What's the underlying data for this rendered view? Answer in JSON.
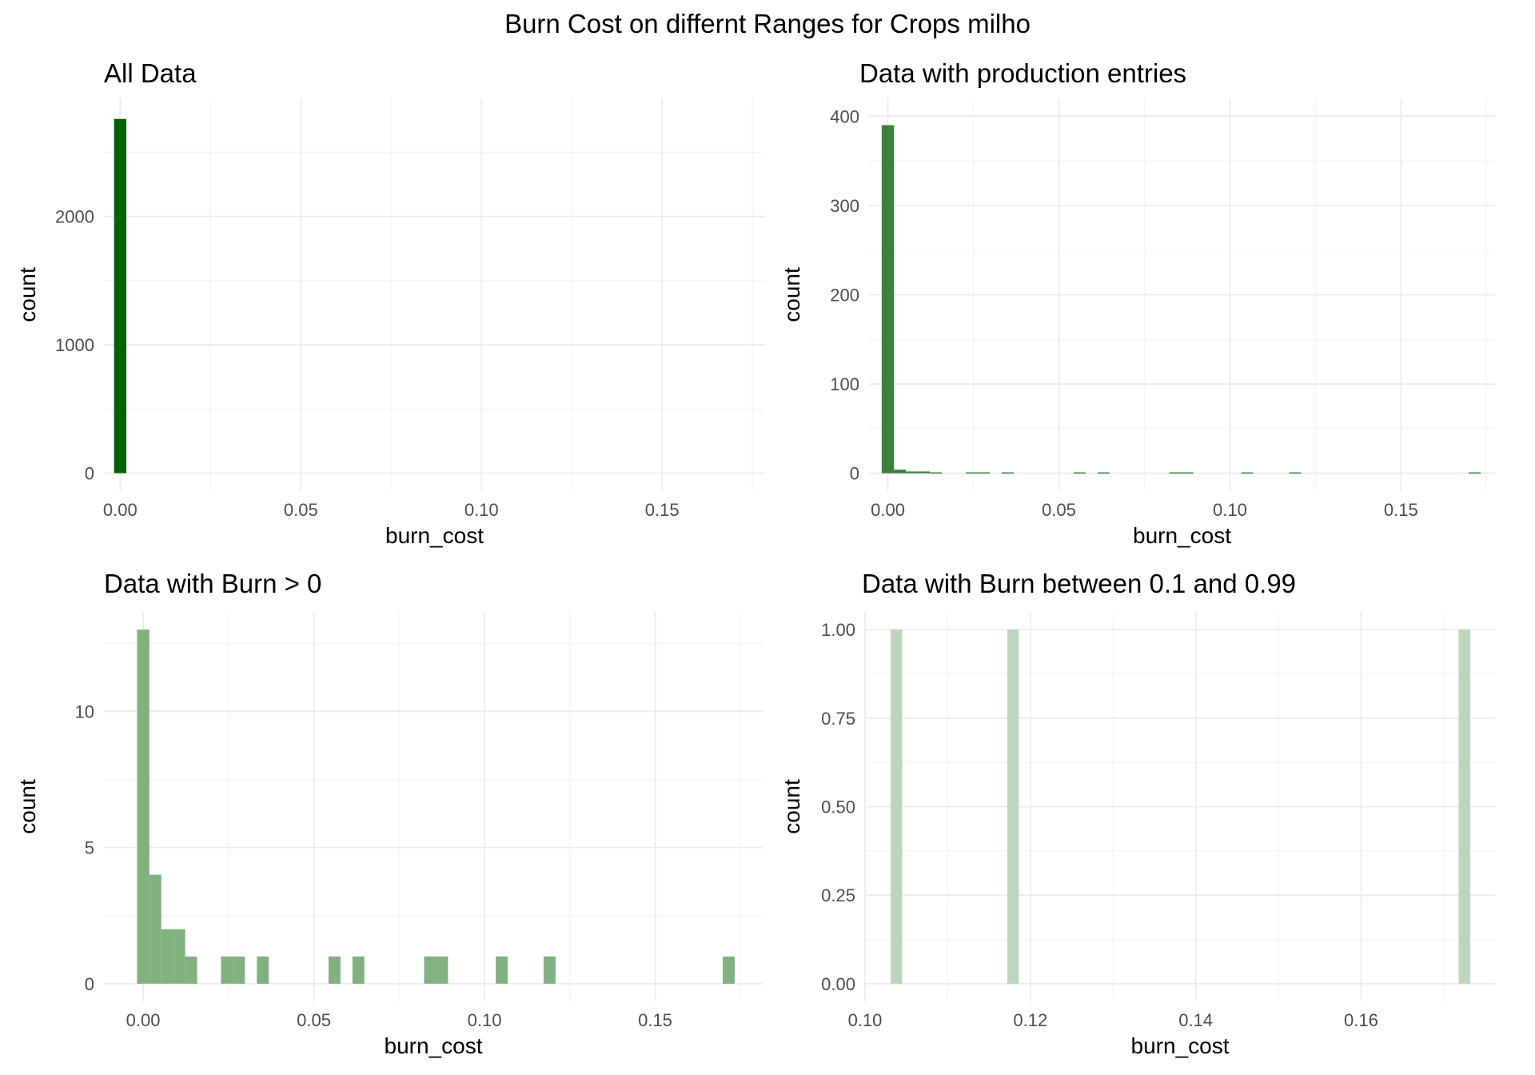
{
  "figure": {
    "title": "Burn Cost on differnt Ranges for Crops milho"
  },
  "colors": {
    "grid_major": "#ebebeb",
    "grid_minor": "#f4f4f4",
    "tick_text": "#4d4d4d",
    "panel1_fill": "#006400",
    "panel2_fill": "#3a823a",
    "panel3_fill": "#7fb27f",
    "panel4_fill": "#bcd6bc"
  },
  "chart_data": [
    {
      "type": "bar",
      "title": "All Data",
      "xlabel": "burn_cost",
      "ylabel": "count",
      "xlim": [
        -0.0045,
        0.1785
      ],
      "ylim": [
        -140,
        2920
      ],
      "x_ticks": [
        0.0,
        0.05,
        0.1,
        0.15
      ],
      "x_tick_labels": [
        "0.00",
        "0.05",
        "0.10",
        "0.15"
      ],
      "y_ticks": [
        0,
        1000,
        2000
      ],
      "y_tick_labels": [
        "0",
        "1000",
        "2000"
      ],
      "grid": true,
      "fill_color": "#006400",
      "bars": [
        {
          "x0": -0.0017,
          "x1": 0.0017,
          "count": 2760
        }
      ]
    },
    {
      "type": "bar",
      "title": "Data with production entries",
      "xlabel": "burn_cost",
      "ylabel": "count",
      "xlim": [
        -0.0055,
        0.1775
      ],
      "ylim": [
        -20,
        420
      ],
      "x_ticks": [
        0.0,
        0.05,
        0.1,
        0.15
      ],
      "x_tick_labels": [
        "0.00",
        "0.05",
        "0.10",
        "0.15"
      ],
      "y_ticks": [
        0,
        100,
        200,
        300,
        400
      ],
      "y_tick_labels": [
        "0",
        "100",
        "200",
        "300",
        "400"
      ],
      "grid": true,
      "fill_color": "#3a823a",
      "bars": [
        {
          "x0": -0.0018,
          "x1": 0.0018,
          "count": 390
        },
        {
          "x0": 0.0018,
          "x1": 0.0053,
          "count": 4
        },
        {
          "x0": 0.0053,
          "x1": 0.0088,
          "count": 2
        },
        {
          "x0": 0.0088,
          "x1": 0.0123,
          "count": 2
        },
        {
          "x0": 0.0123,
          "x1": 0.0158,
          "count": 1
        },
        {
          "x0": 0.0228,
          "x1": 0.0263,
          "count": 1
        },
        {
          "x0": 0.0263,
          "x1": 0.0298,
          "count": 1
        },
        {
          "x0": 0.0333,
          "x1": 0.0368,
          "count": 1
        },
        {
          "x0": 0.0543,
          "x1": 0.0578,
          "count": 1
        },
        {
          "x0": 0.0613,
          "x1": 0.0648,
          "count": 1
        },
        {
          "x0": 0.0823,
          "x1": 0.0858,
          "count": 1
        },
        {
          "x0": 0.0858,
          "x1": 0.0893,
          "count": 1
        },
        {
          "x0": 0.1033,
          "x1": 0.1068,
          "count": 1
        },
        {
          "x0": 0.1173,
          "x1": 0.1208,
          "count": 1
        },
        {
          "x0": 0.1698,
          "x1": 0.1733,
          "count": 1
        }
      ]
    },
    {
      "type": "bar",
      "title": "Data with Burn > 0",
      "xlabel": "burn_cost",
      "ylabel": "count",
      "xlim": [
        -0.0115,
        0.1815
      ],
      "ylim": [
        -0.65,
        13.65
      ],
      "x_ticks": [
        0.0,
        0.05,
        0.1,
        0.15
      ],
      "x_tick_labels": [
        "0.00",
        "0.05",
        "0.10",
        "0.15"
      ],
      "y_ticks": [
        0,
        5,
        10
      ],
      "y_tick_labels": [
        "0",
        "5",
        "10"
      ],
      "grid": true,
      "fill_color": "#7fb27f",
      "bars": [
        {
          "x0": -0.0018,
          "x1": 0.0018,
          "count": 13
        },
        {
          "x0": 0.0018,
          "x1": 0.0053,
          "count": 4
        },
        {
          "x0": 0.0053,
          "x1": 0.0088,
          "count": 2
        },
        {
          "x0": 0.0088,
          "x1": 0.0123,
          "count": 2
        },
        {
          "x0": 0.0123,
          "x1": 0.0158,
          "count": 1
        },
        {
          "x0": 0.0228,
          "x1": 0.0263,
          "count": 1
        },
        {
          "x0": 0.0263,
          "x1": 0.0298,
          "count": 1
        },
        {
          "x0": 0.0333,
          "x1": 0.0368,
          "count": 1
        },
        {
          "x0": 0.0543,
          "x1": 0.0578,
          "count": 1
        },
        {
          "x0": 0.0613,
          "x1": 0.0648,
          "count": 1
        },
        {
          "x0": 0.0823,
          "x1": 0.0858,
          "count": 1
        },
        {
          "x0": 0.0858,
          "x1": 0.0893,
          "count": 1
        },
        {
          "x0": 0.1033,
          "x1": 0.1068,
          "count": 1
        },
        {
          "x0": 0.1173,
          "x1": 0.1208,
          "count": 1
        },
        {
          "x0": 0.1698,
          "x1": 0.1733,
          "count": 1
        }
      ]
    },
    {
      "type": "bar",
      "title": "Data with Burn between 0.1 and 0.99",
      "xlabel": "burn_cost",
      "ylabel": "count",
      "xlim": [
        0.1,
        0.1762
      ],
      "ylim": [
        -0.05,
        1.05
      ],
      "x_ticks": [
        0.1,
        0.12,
        0.14,
        0.16
      ],
      "x_tick_labels": [
        "0.10",
        "0.12",
        "0.14",
        "0.16"
      ],
      "y_ticks": [
        0,
        0.25,
        0.5,
        0.75,
        1.0
      ],
      "y_tick_labels": [
        "0.00",
        "0.25",
        "0.50",
        "0.75",
        "1.00"
      ],
      "grid": true,
      "fill_color": "#bcd6bc",
      "bars": [
        {
          "x0": 0.1031,
          "x1": 0.1045,
          "count": 1
        },
        {
          "x0": 0.1172,
          "x1": 0.1186,
          "count": 1
        },
        {
          "x0": 0.1718,
          "x1": 0.1732,
          "count": 1
        }
      ]
    }
  ]
}
